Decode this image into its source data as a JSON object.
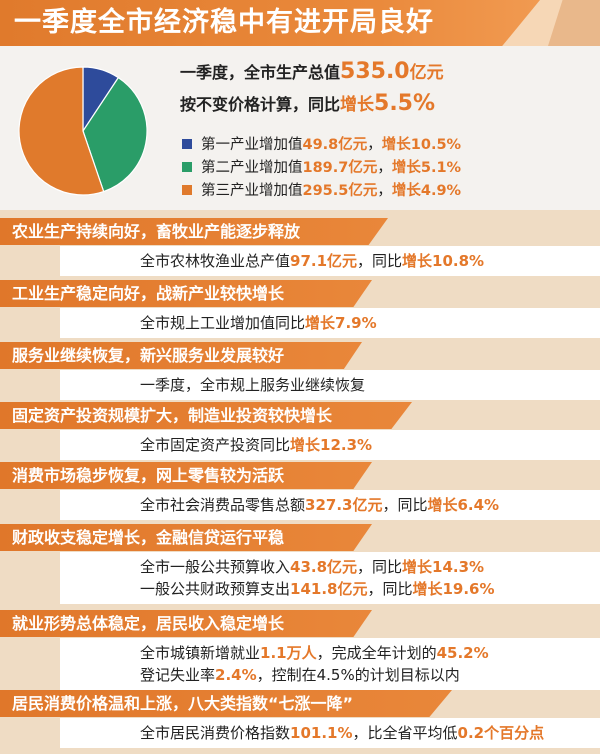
{
  "title": "一季度全市经济稳中有进开局良好",
  "gdp": {
    "line1_prefix": "一季度，全市生产总值",
    "line1_value": "535.0",
    "line1_unit": "亿元",
    "line2_prefix": "按不变价格计算，同比",
    "line2_label": "增长",
    "line2_value": "5.5%"
  },
  "legend": [
    {
      "prefix": "第一产业增加值",
      "value": "49.8亿元",
      "sep": "，",
      "growth": "增长10.5%",
      "color": "#2e4b9b"
    },
    {
      "prefix": "第二产业增加值",
      "value": "189.7亿元",
      "sep": "，",
      "growth": "增长5.1%",
      "color": "#2a9d68"
    },
    {
      "prefix": "第三产业增加值",
      "value": "295.5亿元",
      "sep": "，",
      "growth": "增长4.9%",
      "color": "#e07a2c"
    }
  ],
  "chart_data": {
    "type": "pie",
    "title": "",
    "categories": [
      "第一产业增加值",
      "第二产业增加值",
      "第三产业增加值"
    ],
    "values": [
      49.8,
      189.7,
      295.5
    ],
    "colors": [
      "#2e4b9b",
      "#2a9d68",
      "#e07a2c"
    ]
  },
  "sections": [
    {
      "title": "农业生产持续向好，畜牧业产能逐步释放",
      "lines": [
        [
          {
            "t": "全市农林牧渔业总产值"
          },
          {
            "t": "97.1亿元",
            "hl": true
          },
          {
            "t": "，同比"
          },
          {
            "t": "增长10.8%",
            "hl": true
          }
        ]
      ]
    },
    {
      "title": "工业生产稳定向好，战新产业较快增长",
      "lines": [
        [
          {
            "t": "全市规上工业增加值同比"
          },
          {
            "t": "增长7.9%",
            "hl": true
          }
        ]
      ]
    },
    {
      "title": "服务业继续恢复，新兴服务业发展较好",
      "lines": [
        [
          {
            "t": "一季度，全市规上服务业继续恢复"
          }
        ]
      ]
    },
    {
      "title": "固定资产投资规模扩大，制造业投资较快增长",
      "lines": [
        [
          {
            "t": "全市固定资产投资同比"
          },
          {
            "t": "增长12.3%",
            "hl": true
          }
        ]
      ]
    },
    {
      "title": "消费市场稳步恢复，网上零售较为活跃",
      "lines": [
        [
          {
            "t": "全市社会消费品零售总额"
          },
          {
            "t": "327.3亿元",
            "hl": true
          },
          {
            "t": "，同比"
          },
          {
            "t": "增长6.4%",
            "hl": true
          }
        ]
      ]
    },
    {
      "title": "财政收支稳定增长，金融信贷运行平稳",
      "lines": [
        [
          {
            "t": "全市一般公共预算收入"
          },
          {
            "t": "43.8亿元",
            "hl": true
          },
          {
            "t": "，同比"
          },
          {
            "t": "增长14.3%",
            "hl": true
          }
        ],
        [
          {
            "t": "一般公共财政预算支出"
          },
          {
            "t": "141.8亿元",
            "hl": true
          },
          {
            "t": "，同比"
          },
          {
            "t": "增长19.6%",
            "hl": true
          }
        ]
      ]
    },
    {
      "title": "就业形势总体稳定，居民收入稳定增长",
      "lines": [
        [
          {
            "t": "全市城镇新增就业"
          },
          {
            "t": "1.1万人",
            "hl": true
          },
          {
            "t": "，完成全年计划的"
          },
          {
            "t": "45.2%",
            "hl": true
          }
        ],
        [
          {
            "t": "登记失业率"
          },
          {
            "t": "2.4%",
            "hl": true
          },
          {
            "t": "，控制在4.5%的计划目标以内"
          }
        ]
      ]
    },
    {
      "title": "居民消费价格温和上涨，八大类指数“七涨一降”",
      "lines": [
        [
          {
            "t": "全市居民消费价格指数"
          },
          {
            "t": "101.1%",
            "hl": true
          },
          {
            "t": "，比全省平均低"
          },
          {
            "t": "0.2个百分点",
            "hl": true
          }
        ]
      ]
    }
  ]
}
